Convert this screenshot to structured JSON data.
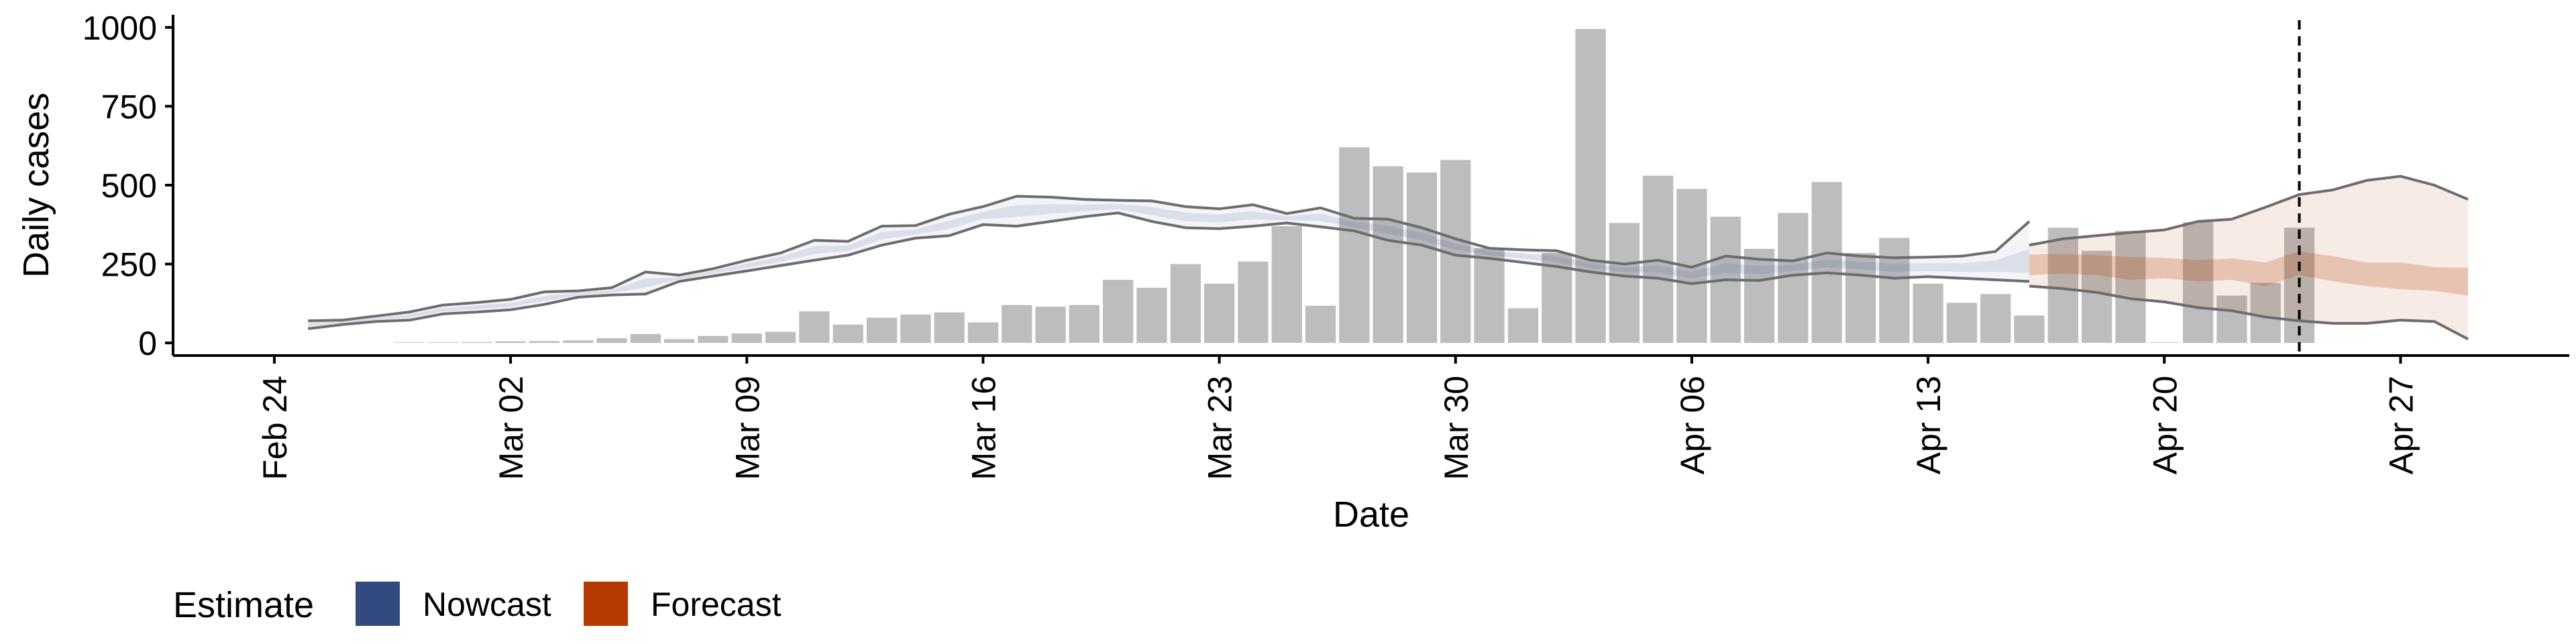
{
  "chart_data": {
    "type": "bar",
    "title": "",
    "xlabel": "Date",
    "ylabel": "Daily cases",
    "ylim": [
      -40,
      1040
    ],
    "y_ticks": [
      0,
      250,
      500,
      750,
      1000
    ],
    "x_ticks": [
      "2020-02-24",
      "2020-03-02",
      "2020-03-09",
      "2020-03-16",
      "2020-03-23",
      "2020-03-30",
      "2020-04-06",
      "2020-04-13",
      "2020-04-20",
      "2020-04-27"
    ],
    "x_tick_labels": [
      "Feb 24",
      "Mar 02",
      "Mar 09",
      "Mar 16",
      "Mar 23",
      "Mar 30",
      "Apr 06",
      "Apr 13",
      "Apr 20",
      "Apr 27"
    ],
    "xlim": [
      "2020-02-21",
      "2020-05-02"
    ],
    "forecast_marker_date": "2020-04-24",
    "grid": false,
    "legend": {
      "title": "Estimate",
      "position": "bottom-left",
      "entries": [
        {
          "label": "Nowcast",
          "color": "#334a80"
        },
        {
          "label": "Forecast",
          "color": "#b33a00"
        }
      ]
    },
    "colors": {
      "bars": "#bdbdbd",
      "nowcast": "#334a80",
      "forecast": "#b33a00",
      "outer_line": "#6d6d6d"
    },
    "cases": {
      "dates": [
        "2020-02-28",
        "2020-02-29",
        "2020-03-01",
        "2020-03-02",
        "2020-03-03",
        "2020-03-04",
        "2020-03-05",
        "2020-03-06",
        "2020-03-07",
        "2020-03-08",
        "2020-03-09",
        "2020-03-10",
        "2020-03-11",
        "2020-03-12",
        "2020-03-13",
        "2020-03-14",
        "2020-03-15",
        "2020-03-16",
        "2020-03-17",
        "2020-03-18",
        "2020-03-19",
        "2020-03-20",
        "2020-03-21",
        "2020-03-22",
        "2020-03-23",
        "2020-03-24",
        "2020-03-25",
        "2020-03-26",
        "2020-03-27",
        "2020-03-28",
        "2020-03-29",
        "2020-03-30",
        "2020-03-31",
        "2020-04-01",
        "2020-04-02",
        "2020-04-03",
        "2020-04-04",
        "2020-04-05",
        "2020-04-06",
        "2020-04-07",
        "2020-04-08",
        "2020-04-09",
        "2020-04-10",
        "2020-04-11",
        "2020-04-12",
        "2020-04-13",
        "2020-04-14",
        "2020-04-15",
        "2020-04-16",
        "2020-04-17",
        "2020-04-18",
        "2020-04-19",
        "2020-04-20",
        "2020-04-21",
        "2020-04-22",
        "2020-04-23",
        "2020-04-24"
      ],
      "values": [
        2,
        2,
        3,
        5,
        6,
        8,
        15,
        28,
        12,
        22,
        30,
        35,
        100,
        58,
        80,
        90,
        97,
        65,
        120,
        115,
        120,
        200,
        175,
        250,
        188,
        258,
        370,
        118,
        620,
        560,
        540,
        580,
        300,
        110,
        285,
        995,
        380,
        530,
        488,
        400,
        298,
        412,
        510,
        285,
        333,
        188,
        127,
        155,
        87,
        365,
        292,
        355,
        2,
        383,
        150,
        190,
        365
      ]
    },
    "nowcast": {
      "dates": [
        "2020-02-25",
        "2020-02-26",
        "2020-02-27",
        "2020-02-28",
        "2020-02-29",
        "2020-03-01",
        "2020-03-02",
        "2020-03-03",
        "2020-03-04",
        "2020-03-05",
        "2020-03-06",
        "2020-03-07",
        "2020-03-08",
        "2020-03-09",
        "2020-03-10",
        "2020-03-11",
        "2020-03-12",
        "2020-03-13",
        "2020-03-14",
        "2020-03-15",
        "2020-03-16",
        "2020-03-17",
        "2020-03-18",
        "2020-03-19",
        "2020-03-20",
        "2020-03-21",
        "2020-03-22",
        "2020-03-23",
        "2020-03-24",
        "2020-03-25",
        "2020-03-26",
        "2020-03-27",
        "2020-03-28",
        "2020-03-29",
        "2020-03-30",
        "2020-03-31",
        "2020-04-01",
        "2020-04-02",
        "2020-04-03",
        "2020-04-04",
        "2020-04-05",
        "2020-04-06",
        "2020-04-07",
        "2020-04-08",
        "2020-04-09",
        "2020-04-10",
        "2020-04-11",
        "2020-04-12",
        "2020-04-13",
        "2020-04-14",
        "2020-04-15",
        "2020-04-16"
      ],
      "upper": [
        70,
        72,
        85,
        98,
        120,
        128,
        138,
        162,
        165,
        175,
        225,
        215,
        235,
        262,
        285,
        325,
        322,
        370,
        372,
        408,
        432,
        465,
        462,
        455,
        452,
        450,
        432,
        425,
        438,
        410,
        428,
        395,
        392,
        365,
        330,
        300,
        295,
        292,
        262,
        250,
        262,
        240,
        275,
        265,
        260,
        285,
        275,
        270,
        272,
        275,
        290,
        385
      ],
      "lower": [
        45,
        58,
        68,
        72,
        92,
        98,
        105,
        122,
        145,
        152,
        155,
        195,
        212,
        228,
        245,
        262,
        278,
        310,
        332,
        340,
        375,
        370,
        385,
        400,
        412,
        385,
        365,
        362,
        370,
        380,
        368,
        355,
        325,
        310,
        278,
        268,
        255,
        242,
        225,
        212,
        205,
        188,
        200,
        198,
        215,
        222,
        215,
        205,
        210,
        205,
        200,
        195
      ],
      "median": [
        58,
        65,
        76,
        85,
        105,
        112,
        120,
        140,
        155,
        162,
        190,
        205,
        225,
        245,
        265,
        295,
        300,
        340,
        352,
        375,
        405,
        418,
        425,
        428,
        432,
        418,
        400,
        395,
        405,
        395,
        398,
        375,
        358,
        338,
        305,
        285,
        275,
        265,
        245,
        232,
        235,
        215,
        238,
        230,
        238,
        252,
        245,
        238,
        240,
        238,
        242,
        240
      ]
    },
    "forecast": {
      "dates": [
        "2020-04-16",
        "2020-04-17",
        "2020-04-18",
        "2020-04-19",
        "2020-04-20",
        "2020-04-21",
        "2020-04-22",
        "2020-04-23",
        "2020-04-24",
        "2020-04-25",
        "2020-04-26",
        "2020-04-27",
        "2020-04-28",
        "2020-04-29"
      ],
      "upper": [
        310,
        330,
        340,
        350,
        358,
        385,
        392,
        430,
        470,
        485,
        515,
        528,
        500,
        455
      ],
      "lower": [
        180,
        172,
        160,
        140,
        130,
        112,
        102,
        82,
        70,
        62,
        62,
        72,
        68,
        12
      ],
      "median": [
        250,
        255,
        250,
        240,
        245,
        230,
        240,
        215,
        260,
        240,
        220,
        215,
        205,
        200
      ],
      "inner_upper": [
        280,
        282,
        278,
        272,
        270,
        262,
        268,
        255,
        290,
        275,
        255,
        255,
        240,
        238
      ],
      "inner_lower": [
        215,
        220,
        215,
        200,
        205,
        195,
        200,
        180,
        215,
        195,
        180,
        170,
        165,
        150
      ]
    }
  }
}
